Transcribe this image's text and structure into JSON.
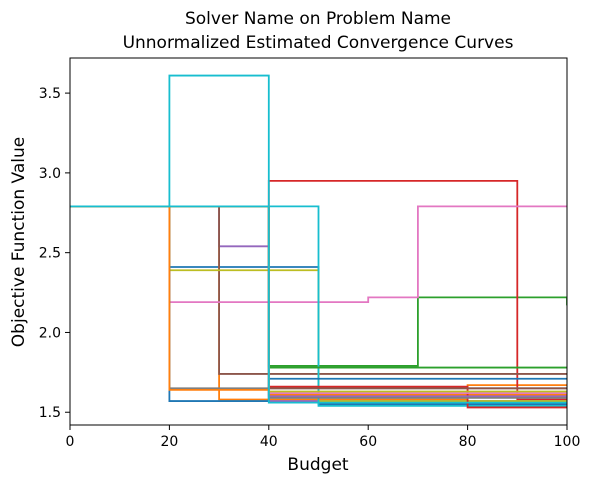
{
  "chart_data": {
    "type": "line",
    "title": "Solver Name on Problem Name",
    "subtitle": "Unnormalized Estimated Convergence Curves",
    "xlabel": "Budget",
    "ylabel": "Objective Function Value",
    "xlim": [
      0,
      100
    ],
    "ylim": [
      1.42,
      3.72
    ],
    "xticks": [
      0,
      20,
      40,
      60,
      80,
      100
    ],
    "yticks": [
      1.5,
      2.0,
      2.5,
      3.0,
      3.5
    ],
    "xtick_labels": [
      "0",
      "20",
      "40",
      "60",
      "80",
      "100"
    ],
    "ytick_labels": [
      "1.5",
      "2.0",
      "2.5",
      "3.0",
      "3.5"
    ],
    "grid": false,
    "step": "post",
    "series": [
      {
        "color": "#1f77b4",
        "x": [
          0,
          20,
          20,
          50,
          50,
          100
        ],
        "y": [
          2.79,
          2.79,
          2.41,
          2.41,
          1.55,
          1.55
        ]
      },
      {
        "color": "#ff7f0e",
        "x": [
          0,
          30,
          30,
          80,
          80,
          100
        ],
        "y": [
          2.79,
          2.79,
          1.58,
          1.58,
          1.67,
          1.67
        ]
      },
      {
        "color": "#2ca02c",
        "x": [
          0,
          40,
          40,
          70,
          70,
          100,
          100
        ],
        "y": [
          2.79,
          2.79,
          1.79,
          1.79,
          2.22,
          2.22,
          2.17
        ]
      },
      {
        "color": "#d62728",
        "x": [
          0,
          40,
          40,
          90,
          90,
          100
        ],
        "y": [
          2.79,
          2.79,
          2.95,
          2.95,
          1.58,
          1.58
        ]
      },
      {
        "color": "#9467bd",
        "x": [
          0,
          30,
          30,
          40,
          40,
          100
        ],
        "y": [
          2.79,
          2.79,
          2.54,
          2.54,
          1.57,
          1.57
        ]
      },
      {
        "color": "#8c564b",
        "x": [
          0,
          30,
          30,
          100
        ],
        "y": [
          2.79,
          2.79,
          1.74,
          1.74
        ]
      },
      {
        "color": "#e377c2",
        "x": [
          0,
          20,
          20,
          60,
          60,
          70,
          70,
          100
        ],
        "y": [
          2.79,
          2.79,
          2.19,
          2.19,
          2.22,
          2.22,
          2.79,
          2.79
        ]
      },
      {
        "color": "#7f7f7f",
        "x": [
          0,
          20,
          20,
          100
        ],
        "y": [
          2.79,
          2.79,
          1.65,
          1.65
        ]
      },
      {
        "color": "#bcbd22",
        "x": [
          0,
          20,
          20,
          50,
          50,
          100
        ],
        "y": [
          2.79,
          2.79,
          2.39,
          2.39,
          1.57,
          1.57
        ]
      },
      {
        "color": "#17becf",
        "x": [
          0,
          20,
          20,
          40,
          40,
          50,
          50,
          100
        ],
        "y": [
          2.79,
          2.79,
          3.61,
          3.61,
          2.79,
          2.79,
          1.54,
          1.54
        ]
      },
      {
        "color": "#1f77b4",
        "x": [
          0,
          20,
          20,
          40,
          40,
          100
        ],
        "y": [
          2.79,
          2.79,
          1.57,
          1.57,
          1.71,
          1.71
        ]
      },
      {
        "color": "#ff7f0e",
        "x": [
          0,
          20,
          20,
          40,
          40,
          100
        ],
        "y": [
          2.79,
          2.79,
          1.64,
          1.64,
          1.61,
          1.61
        ]
      },
      {
        "color": "#2ca02c",
        "x": [
          0,
          40,
          40,
          100
        ],
        "y": [
          2.79,
          2.79,
          1.78,
          1.78
        ]
      },
      {
        "color": "#d62728",
        "x": [
          0,
          40,
          40,
          80,
          80,
          100
        ],
        "y": [
          2.79,
          2.79,
          1.66,
          1.66,
          1.53,
          1.53
        ]
      },
      {
        "color": "#9467bd",
        "x": [
          0,
          40,
          40,
          100
        ],
        "y": [
          2.79,
          2.79,
          1.6,
          1.6
        ]
      },
      {
        "color": "#8c564b",
        "x": [
          0,
          40,
          40,
          100
        ],
        "y": [
          2.79,
          2.79,
          1.65,
          1.65
        ]
      },
      {
        "color": "#e377c2",
        "x": [
          0,
          40,
          40,
          100
        ],
        "y": [
          2.79,
          2.79,
          1.62,
          1.62
        ]
      },
      {
        "color": "#7f7f7f",
        "x": [
          0,
          40,
          40,
          100
        ],
        "y": [
          2.79,
          2.79,
          1.59,
          1.59
        ]
      },
      {
        "color": "#bcbd22",
        "x": [
          0,
          40,
          40,
          100
        ],
        "y": [
          2.79,
          2.79,
          1.63,
          1.63
        ]
      },
      {
        "color": "#17becf",
        "x": [
          0,
          40,
          40,
          100
        ],
        "y": [
          2.79,
          2.79,
          1.56,
          1.56
        ]
      }
    ]
  }
}
